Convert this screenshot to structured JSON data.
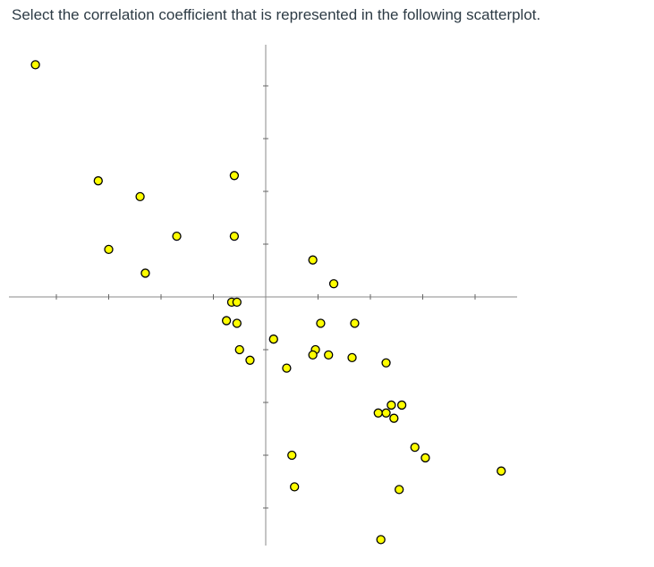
{
  "question": "Select the correlation coefficient that is represented in the following scatterplot.",
  "colors": {
    "point_fill": "#ffff00",
    "point_stroke": "#000000",
    "axis": "#888888"
  },
  "chart_data": {
    "type": "scatter",
    "title": "",
    "xlabel": "",
    "ylabel": "",
    "grid": false,
    "xlim": [
      -4.5,
      4.6
    ],
    "ylim": [
      -4.6,
      4.6
    ],
    "x_ticks": [
      -4,
      -3,
      -2,
      -1,
      1,
      2,
      3,
      4
    ],
    "y_ticks": [
      -4,
      -3,
      -2,
      -1,
      1,
      2,
      3,
      4
    ],
    "points": [
      {
        "x": -4.4,
        "y": 4.4
      },
      {
        "x": -3.2,
        "y": 2.2
      },
      {
        "x": -3.0,
        "y": 0.9
      },
      {
        "x": -2.4,
        "y": 1.9
      },
      {
        "x": -2.3,
        "y": 0.45
      },
      {
        "x": -1.7,
        "y": 1.15
      },
      {
        "x": -0.6,
        "y": 2.3
      },
      {
        "x": -0.6,
        "y": 1.15
      },
      {
        "x": -0.65,
        "y": -0.1
      },
      {
        "x": -0.55,
        "y": -0.1
      },
      {
        "x": -0.75,
        "y": -0.45
      },
      {
        "x": -0.55,
        "y": -0.5
      },
      {
        "x": -0.5,
        "y": -1.0
      },
      {
        "x": -0.3,
        "y": -1.2
      },
      {
        "x": 0.15,
        "y": -0.8
      },
      {
        "x": 0.4,
        "y": -1.35
      },
      {
        "x": 0.9,
        "y": 0.7
      },
      {
        "x": 1.3,
        "y": 0.25
      },
      {
        "x": 1.05,
        "y": -0.5
      },
      {
        "x": 1.7,
        "y": -0.5
      },
      {
        "x": 0.95,
        "y": -1.0
      },
      {
        "x": 0.9,
        "y": -1.1
      },
      {
        "x": 1.2,
        "y": -1.1
      },
      {
        "x": 1.65,
        "y": -1.15
      },
      {
        "x": 2.3,
        "y": -1.25
      },
      {
        "x": 2.15,
        "y": -2.2
      },
      {
        "x": 2.3,
        "y": -2.2
      },
      {
        "x": 2.4,
        "y": -2.05
      },
      {
        "x": 2.6,
        "y": -2.05
      },
      {
        "x": 2.45,
        "y": -2.3
      },
      {
        "x": 2.85,
        "y": -2.85
      },
      {
        "x": 3.05,
        "y": -3.05
      },
      {
        "x": 0.5,
        "y": -3.0
      },
      {
        "x": 0.55,
        "y": -3.6
      },
      {
        "x": 2.55,
        "y": -3.65
      },
      {
        "x": 4.5,
        "y": -3.3
      },
      {
        "x": 2.2,
        "y": -4.6
      }
    ]
  }
}
